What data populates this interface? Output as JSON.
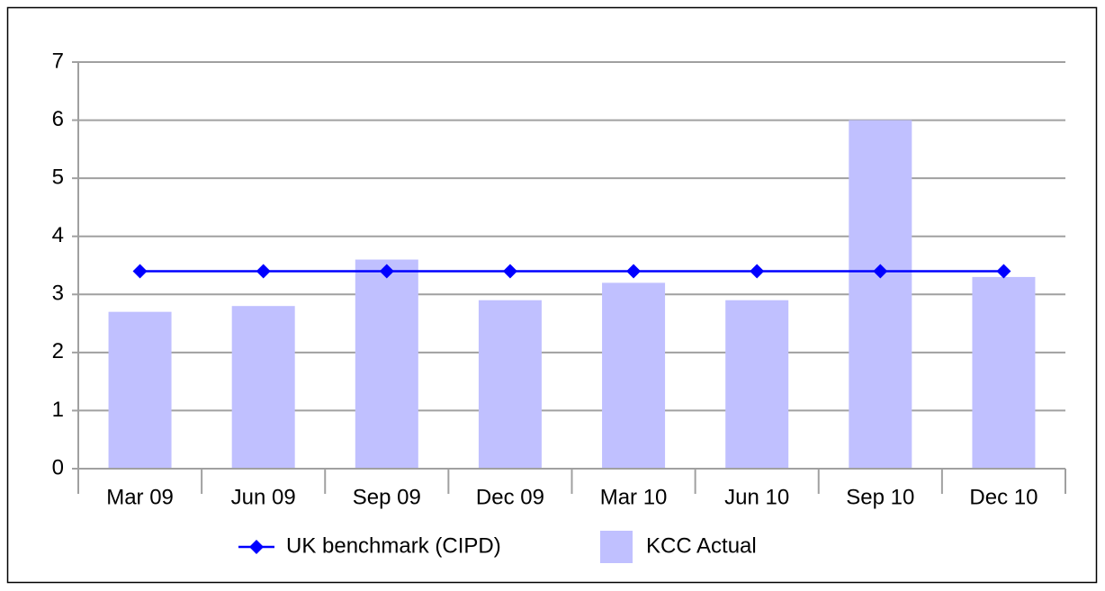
{
  "chart_data": {
    "type": "bar",
    "categories": [
      "Mar 09",
      "Jun 09",
      "Sep 09",
      "Dec 09",
      "Mar 10",
      "Jun 10",
      "Sep 10",
      "Dec 10"
    ],
    "series": [
      {
        "name": "UK benchmark (CIPD)",
        "kind": "line",
        "color": "#0000ff",
        "values": [
          3.4,
          3.4,
          3.4,
          3.4,
          3.4,
          3.4,
          3.4,
          3.4
        ]
      },
      {
        "name": "KCC Actual",
        "kind": "bar",
        "color": "#c0c0ff",
        "values": [
          2.7,
          2.8,
          3.6,
          2.9,
          3.2,
          2.9,
          6.0,
          3.3
        ]
      }
    ],
    "ylim": [
      0,
      7
    ],
    "yticks": [
      0,
      1,
      2,
      3,
      4,
      5,
      6,
      7
    ],
    "grid": true,
    "legend": "bottom"
  }
}
